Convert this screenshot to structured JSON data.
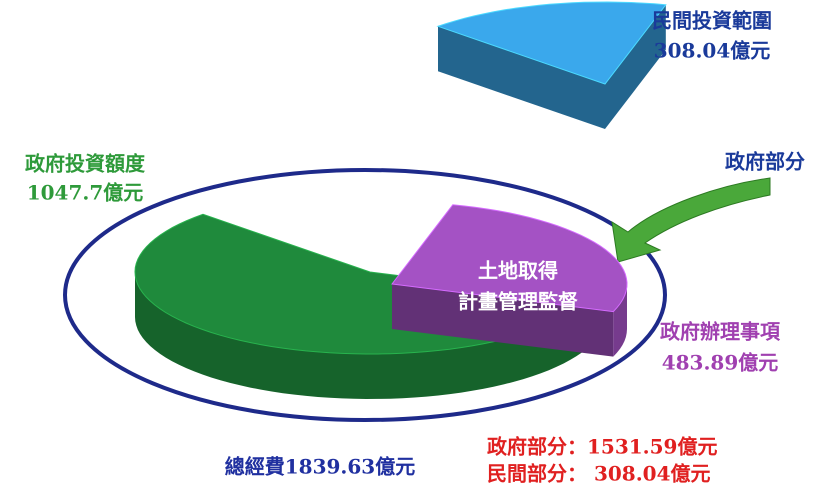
{
  "chart_data": {
    "type": "pie",
    "categories": [
      "政府投資額度",
      "政府辦理事項",
      "民間投資範圍"
    ],
    "values": [
      1047.7,
      483.89,
      308.04
    ],
    "value_labels": [
      "1047.7億元",
      "483.89億元",
      "308.04億元"
    ],
    "colors": [
      "#1f8a3c",
      "#a452c4",
      "#3aa8ec"
    ],
    "annotations": [
      "土地取得",
      "計畫管理監督",
      "政府部分",
      "總經費1839.63億元",
      "政府部分：1531.59億元",
      "民間部分： 308.04億元"
    ]
  }
}
